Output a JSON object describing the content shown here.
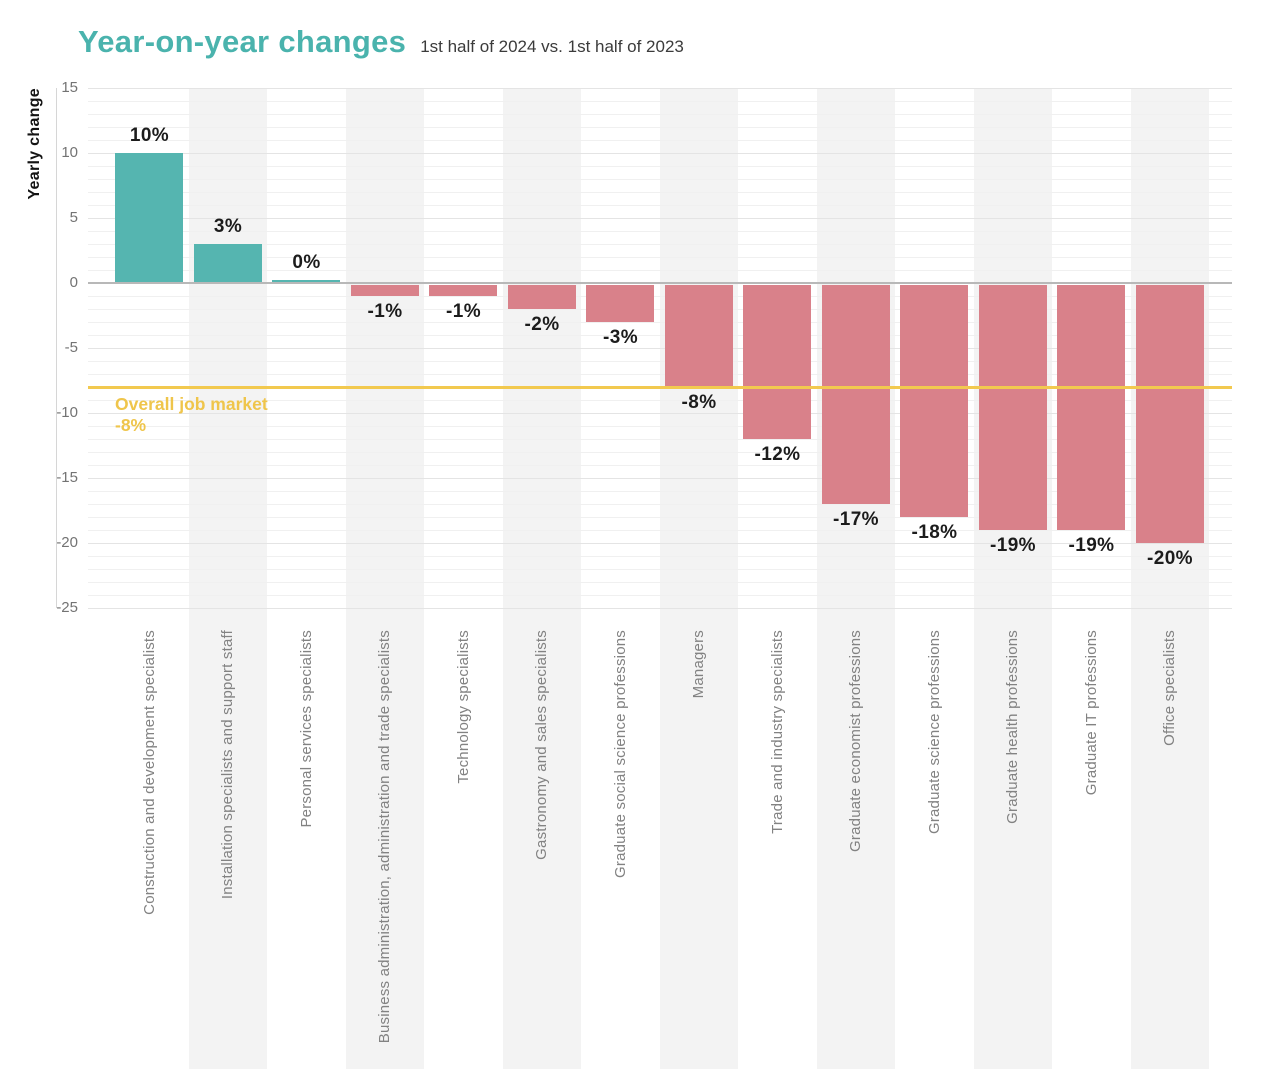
{
  "header": {
    "title": "Year-on-year changes",
    "subtitle": "1st half of 2024 vs. 1st half of 2023"
  },
  "chart_data": {
    "type": "bar",
    "title": "Year-on-year changes",
    "subtitle": "1st half of 2024 vs. 1st half of 2023",
    "xlabel": "",
    "ylabel": "Yearly change",
    "ylim": [
      -25,
      15
    ],
    "y_ticks": [
      15,
      10,
      5,
      0,
      -5,
      -10,
      -15,
      -20,
      -25
    ],
    "grid": "horizontal minor lines every 1 unit, major every 5, zero line emphasized; alternating light-gray column stripes",
    "legend": "none",
    "categories": [
      "Construction and development specialists",
      "Installation specialists and support staff",
      "Personal services specialists",
      "Business administration, administration and trade specialists",
      "Technology specialists",
      "Gastronomy and sales specialists",
      "Graduate social science professions",
      "Managers",
      "Trade and industry specialists",
      "Graduate economist professions",
      "Graduate science professions",
      "Graduate health professions",
      "Graduate IT professions",
      "Office specialists"
    ],
    "values": [
      10,
      3,
      0,
      -1,
      -1,
      -2,
      -3,
      -8,
      -12,
      -17,
      -18,
      -19,
      -19,
      -20
    ],
    "value_labels": [
      "10%",
      "3%",
      "0%",
      "-1%",
      "-1%",
      "-2%",
      "-3%",
      "-8%",
      "-12%",
      "-17%",
      "-18%",
      "-19%",
      "-19%",
      "-20%"
    ],
    "reference_line": {
      "value": -8,
      "label": "Overall job market",
      "label_value": "-8%",
      "color": "#F2C94F",
      "text_color": "#EFC54B"
    },
    "colors": {
      "positive_bar": "#55B5B0",
      "negative_bar": "#D9818A",
      "stripe": "#F3F3F3",
      "title": "#4AB3AD",
      "zero_line": "#B8B8B8"
    }
  }
}
